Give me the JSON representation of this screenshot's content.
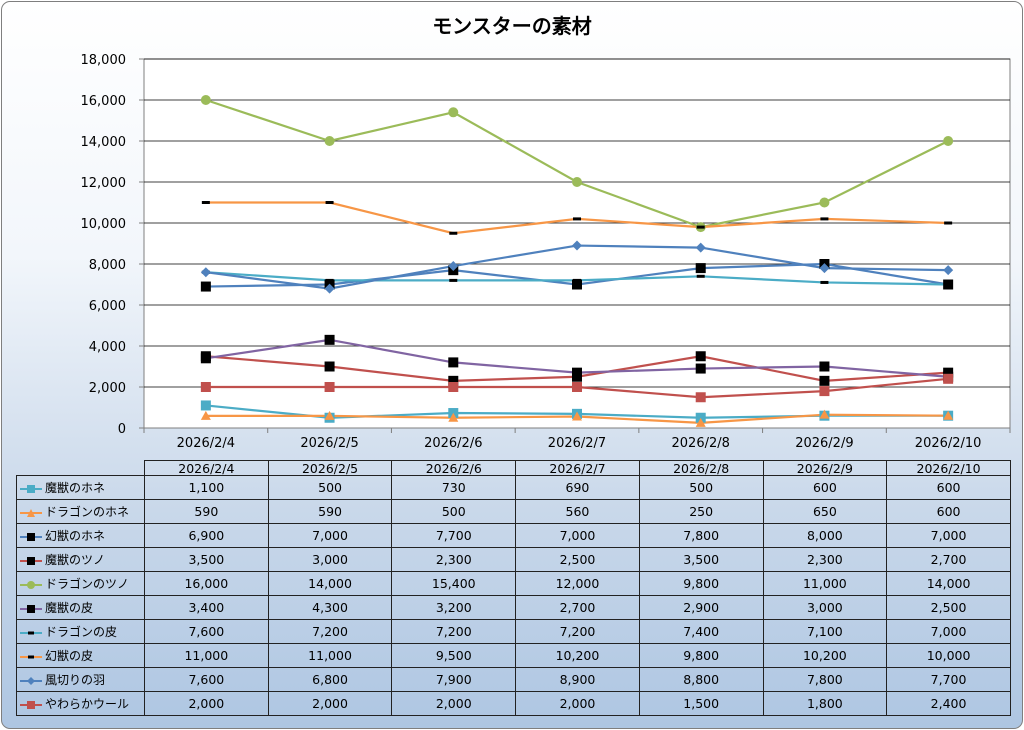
{
  "chart_data": {
    "type": "line",
    "title": "モンスターの素材",
    "categories": [
      "2026/2/4",
      "2026/2/5",
      "2026/2/6",
      "2026/2/7",
      "2026/2/8",
      "2026/2/9",
      "2026/2/10"
    ],
    "ylim": [
      0,
      18000
    ],
    "yticks": [
      "0",
      "2,000",
      "4,000",
      "6,000",
      "8,000",
      "10,000",
      "12,000",
      "14,000",
      "16,000",
      "18,000"
    ],
    "grid": true,
    "legend": "data-table",
    "series": [
      {
        "name": "魔獣のホネ",
        "color": "#4bacc6",
        "marker": "square",
        "values": [
          1100,
          500,
          730,
          690,
          500,
          600,
          600
        ],
        "labels": [
          "1,100",
          "500",
          "730",
          "690",
          "500",
          "600",
          "600"
        ]
      },
      {
        "name": "ドラゴンのホネ",
        "color": "#f79646",
        "marker": "triangle",
        "values": [
          590,
          590,
          500,
          560,
          250,
          650,
          600
        ],
        "labels": [
          "590",
          "590",
          "500",
          "560",
          "250",
          "650",
          "600"
        ]
      },
      {
        "name": "幻獣のホネ",
        "color": "#4f81bd",
        "marker": "blacksquare",
        "values": [
          6900,
          7000,
          7700,
          7000,
          7800,
          8000,
          7000
        ],
        "labels": [
          "6,900",
          "7,000",
          "7,700",
          "7,000",
          "7,800",
          "8,000",
          "7,000"
        ]
      },
      {
        "name": "魔獣のツノ",
        "color": "#c0504d",
        "marker": "blacksquare",
        "values": [
          3500,
          3000,
          2300,
          2500,
          3500,
          2300,
          2700
        ],
        "labels": [
          "3,500",
          "3,000",
          "2,300",
          "2,500",
          "3,500",
          "2,300",
          "2,700"
        ]
      },
      {
        "name": "ドラゴンのツノ",
        "color": "#9bbb59",
        "marker": "circle",
        "values": [
          16000,
          14000,
          15400,
          12000,
          9800,
          11000,
          14000
        ],
        "labels": [
          "16,000",
          "14,000",
          "15,400",
          "12,000",
          "9,800",
          "11,000",
          "14,000"
        ]
      },
      {
        "name": "魔獣の皮",
        "color": "#8064a2",
        "marker": "blacksquare",
        "values": [
          3400,
          4300,
          3200,
          2700,
          2900,
          3000,
          2500
        ],
        "labels": [
          "3,400",
          "4,300",
          "3,200",
          "2,700",
          "2,900",
          "3,000",
          "2,500"
        ]
      },
      {
        "name": "ドラゴンの皮",
        "color": "#4bacc6",
        "marker": "dash",
        "values": [
          7600,
          7200,
          7200,
          7200,
          7400,
          7100,
          7000
        ],
        "labels": [
          "7,600",
          "7,200",
          "7,200",
          "7,200",
          "7,400",
          "7,100",
          "7,000"
        ]
      },
      {
        "name": "幻獣の皮",
        "color": "#f79646",
        "marker": "dash",
        "values": [
          11000,
          11000,
          9500,
          10200,
          9800,
          10200,
          10000
        ],
        "labels": [
          "11,000",
          "11,000",
          "9,500",
          "10,200",
          "9,800",
          "10,200",
          "10,000"
        ]
      },
      {
        "name": "風切りの羽",
        "color": "#4f81bd",
        "marker": "diamond",
        "values": [
          7600,
          6800,
          7900,
          8900,
          8800,
          7800,
          7700
        ],
        "labels": [
          "7,600",
          "6,800",
          "7,900",
          "8,900",
          "8,800",
          "7,800",
          "7,700"
        ]
      },
      {
        "name": "やわらかウール",
        "color": "#c0504d",
        "marker": "redsquare",
        "values": [
          2000,
          2000,
          2000,
          2000,
          1500,
          1800,
          2400
        ],
        "labels": [
          "2,000",
          "2,000",
          "2,000",
          "2,000",
          "1,500",
          "1,800",
          "2,400"
        ]
      }
    ]
  }
}
